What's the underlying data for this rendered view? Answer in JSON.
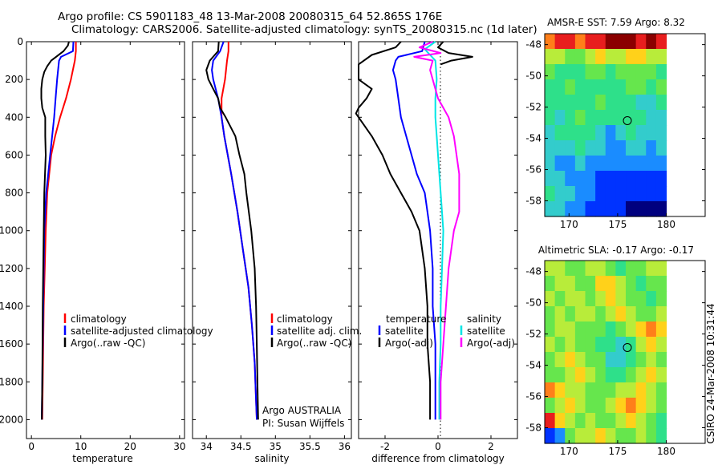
{
  "header": {
    "title_line1": "Argo profile: CS 5901183_48 13-Mar-2008 20080315_64 52.865S 176E",
    "title_line2": "Climatology: CARS2006. Satellite-adjusted climatology: synTS_20080315.nc (1d later)"
  },
  "side_stamp": "CSIRO 24-Mar-2008 10:31:44",
  "colors": {
    "climatology": "#ff0000",
    "satellite": "#0000ff",
    "argo": "#000000",
    "sal_diff": "#ff00ff",
    "sal_sat_diff": "#00e5e5"
  },
  "chart_data": [
    {
      "type": "line",
      "xlabel": "temperature",
      "ylabel": "",
      "xlim": [
        -1,
        31
      ],
      "ylim": [
        2100,
        0
      ],
      "x_ticks": [
        0,
        10,
        20,
        30
      ],
      "y_ticks": [
        0,
        200,
        400,
        600,
        800,
        1000,
        1200,
        1400,
        1600,
        1800,
        2000
      ],
      "grid": false,
      "legend": "bottom-right",
      "series": [
        {
          "name": "climatology",
          "color": "#ff0000",
          "depth": [
            0,
            50,
            100,
            200,
            300,
            400,
            500,
            600,
            800,
            1000,
            1200,
            1400,
            1600,
            1800,
            2000
          ],
          "values": [
            9.0,
            9.0,
            8.8,
            8.0,
            7.0,
            5.8,
            4.8,
            4.0,
            3.2,
            2.9,
            2.7,
            2.5,
            2.4,
            2.3,
            2.2
          ]
        },
        {
          "name": "satellite-adjusted climatology",
          "color": "#0000ff",
          "depth": [
            0,
            50,
            80,
            100,
            150,
            200,
            300,
            400,
            500,
            600,
            700,
            800,
            1000,
            1200,
            1400,
            1600,
            1800,
            2000
          ],
          "values": [
            8.5,
            8.4,
            6.0,
            5.6,
            5.4,
            5.2,
            4.9,
            4.6,
            4.2,
            3.8,
            3.4,
            3.0,
            2.6,
            2.5,
            2.4,
            2.3,
            2.2,
            2.1
          ]
        },
        {
          "name": "Argo(..raw -QC)",
          "color": "#000000",
          "depth": [
            0,
            20,
            50,
            80,
            100,
            130,
            160,
            200,
            250,
            300,
            350,
            400,
            500,
            600,
            800,
            1000,
            1400,
            1800,
            2000
          ],
          "values": [
            7.6,
            7.4,
            6.5,
            5.0,
            4.0,
            3.2,
            2.6,
            2.2,
            2.0,
            2.0,
            2.2,
            2.8,
            2.8,
            2.9,
            2.6,
            2.5,
            2.3,
            2.2,
            2.1
          ]
        }
      ]
    },
    {
      "type": "line",
      "xlabel": "salinity",
      "xlim": [
        33.8,
        36.1
      ],
      "ylim": [
        2100,
        0
      ],
      "x_ticks": [
        34,
        34.5,
        35,
        35.5,
        36
      ],
      "grid": false,
      "legend": "bottom-right",
      "legend_labels": [
        "climatology",
        "satellite adj. clim.",
        "Argo(..raw -QC)"
      ],
      "annotation": [
        "Argo AUSTRALIA",
        "PI: Susan Wijffels"
      ],
      "series": [
        {
          "name": "climatology",
          "color": "#ff0000",
          "depth": [
            0,
            50,
            100,
            200,
            300,
            400,
            500,
            700,
            900,
            1100,
            1300,
            1500,
            1700,
            1900,
            2000
          ],
          "values": [
            34.32,
            34.32,
            34.3,
            34.27,
            34.22,
            34.22,
            34.26,
            34.36,
            34.45,
            34.53,
            34.61,
            34.66,
            34.7,
            34.72,
            34.73
          ]
        },
        {
          "name": "satellite adj. clim.",
          "color": "#0000ff",
          "depth": [
            0,
            50,
            100,
            150,
            200,
            300,
            400,
            500,
            700,
            900,
            1100,
            1300,
            1500,
            1700,
            1900,
            2000
          ],
          "values": [
            34.25,
            34.2,
            34.1,
            34.08,
            34.1,
            34.17,
            34.22,
            34.26,
            34.36,
            34.45,
            34.53,
            34.61,
            34.66,
            34.7,
            34.72,
            34.73
          ]
        },
        {
          "name": "Argo(..raw -QC)",
          "color": "#000000",
          "depth": [
            0,
            50,
            100,
            150,
            200,
            250,
            300,
            350,
            400,
            500,
            600,
            700,
            800,
            1000,
            1200,
            1400,
            1600,
            1800,
            2000
          ],
          "values": [
            34.18,
            34.17,
            34.05,
            34.0,
            34.03,
            34.1,
            34.17,
            34.2,
            34.28,
            34.42,
            34.48,
            34.55,
            34.58,
            34.65,
            34.7,
            34.72,
            34.73,
            34.74,
            34.75
          ]
        }
      ]
    },
    {
      "type": "line",
      "xlabel": "difference from climatology",
      "xlim": [
        -3,
        3
      ],
      "ylim": [
        2100,
        0
      ],
      "x_ticks": [
        -2,
        0,
        2
      ],
      "zero_line": true,
      "grid": false,
      "legend": "bottom",
      "legend_temperature_title": "temperature",
      "legend_salinity_title": "salinity",
      "legend_labels": [
        "satellite",
        "Argo(-adj)",
        "satellite",
        "Argo(-adj)"
      ],
      "series": [
        {
          "name": "satellite",
          "group": "temperature",
          "color": "#0000ff",
          "depth": [
            0,
            50,
            80,
            100,
            150,
            200,
            300,
            400,
            500,
            600,
            700,
            800,
            900,
            1000,
            1200,
            1400,
            1600,
            1800,
            2000
          ],
          "values": [
            -0.5,
            -0.6,
            -1.5,
            -1.6,
            -1.7,
            -1.6,
            -1.5,
            -1.4,
            -1.2,
            -1.0,
            -0.8,
            -0.5,
            -0.4,
            -0.3,
            -0.2,
            -0.2,
            -0.1,
            -0.1,
            -0.1
          ]
        },
        {
          "name": "Argo(-adj)",
          "group": "temperature",
          "color": "#000000",
          "depth": [
            0,
            30,
            70,
            120,
            200,
            250,
            300,
            350,
            380,
            400,
            500,
            600,
            700,
            800,
            900,
            1000,
            1200,
            1400,
            1600,
            1800,
            2000
          ],
          "values": [
            -1.4,
            -1.6,
            -2.5,
            -3.0,
            -3.0,
            -2.5,
            -2.7,
            -3.0,
            -3.1,
            -3.0,
            -2.5,
            -2.1,
            -1.8,
            -1.4,
            -1.0,
            -0.7,
            -0.5,
            -0.4,
            -0.4,
            -0.3,
            -0.3
          ]
        },
        {
          "name": "satellite",
          "group": "salinity",
          "color": "#00e5e5",
          "depth": [
            0,
            40,
            70,
            100,
            200,
            300,
            400,
            500,
            600,
            800,
            1000,
            1200,
            1400,
            1600,
            1800,
            2000
          ],
          "values": [
            -0.1,
            -0.5,
            -0.3,
            -0.1,
            -0.05,
            -0.1,
            -0.1,
            -0.05,
            0.0,
            0.1,
            0.2,
            0.15,
            0.1,
            0.1,
            0.05,
            0.05
          ]
        },
        {
          "name": "Argo(-adj)",
          "group": "salinity",
          "color": "#ff00ff",
          "depth": [
            0,
            30,
            60,
            80,
            100,
            150,
            200,
            300,
            400,
            500,
            600,
            700,
            800,
            900,
            1000,
            1200,
            1400,
            1600,
            1800,
            2000
          ],
          "values": [
            -0.2,
            -0.7,
            0.1,
            -0.9,
            -0.2,
            -0.3,
            -0.2,
            0.0,
            0.4,
            0.6,
            0.7,
            0.8,
            0.8,
            0.8,
            0.6,
            0.4,
            0.3,
            0.2,
            0.1,
            0.1
          ]
        },
        {
          "name": "",
          "group": "spike",
          "color": "#000000",
          "depth": [
            0,
            30,
            60,
            80,
            100,
            120
          ],
          "values": [
            0.2,
            0.0,
            0.4,
            1.3,
            0.5,
            0.1
          ]
        }
      ]
    },
    {
      "type": "heatmap",
      "title": "AMSR-E SST: 7.59 Argo: 8.32",
      "xlim": [
        167.5,
        184
      ],
      "ylim": [
        -59,
        -47.3
      ],
      "x_ticks": [
        170,
        175,
        180
      ],
      "y_ticks": [
        -48,
        -50,
        -52,
        -54,
        -56,
        -58
      ],
      "data_extent": {
        "lon": [
          167.5,
          180
        ],
        "lat": [
          -59,
          -47.3
        ]
      },
      "argo_position": {
        "lon": 176,
        "lat": -52.865
      },
      "palette": [
        "#00007f",
        "#0033ff",
        "#1a8cff",
        "#33cccc",
        "#2ee08a",
        "#66e64d",
        "#b8ec3a",
        "#ffd11a",
        "#ff7f1a",
        "#e81e1e",
        "#8b0000"
      ],
      "grid": [
        [
          8,
          9,
          9,
          8,
          9,
          9,
          10,
          10,
          10,
          9,
          10,
          9
        ],
        [
          6,
          6,
          5,
          5,
          6,
          7,
          6,
          6,
          7,
          7,
          6,
          6
        ],
        [
          5,
          4,
          4,
          4,
          5,
          5,
          4,
          5,
          5,
          5,
          5,
          4
        ],
        [
          4,
          4,
          5,
          4,
          4,
          4,
          4,
          4,
          5,
          5,
          4,
          5
        ],
        [
          4,
          4,
          4,
          4,
          4,
          5,
          4,
          4,
          4,
          3,
          3,
          4
        ],
        [
          4,
          3,
          4,
          5,
          4,
          4,
          4,
          4,
          4,
          4,
          3,
          3
        ],
        [
          3,
          4,
          4,
          4,
          4,
          3,
          2,
          3,
          4,
          3,
          3,
          3
        ],
        [
          3,
          3,
          3,
          4,
          3,
          3,
          2,
          2,
          3,
          3,
          2,
          3
        ],
        [
          3,
          2,
          2,
          3,
          2,
          2,
          2,
          2,
          2,
          2,
          2,
          2
        ],
        [
          3,
          3,
          2,
          2,
          2,
          1,
          1,
          1,
          1,
          1,
          1,
          1
        ],
        [
          4,
          3,
          3,
          2,
          2,
          1,
          1,
          1,
          1,
          1,
          1,
          1
        ],
        [
          3,
          3,
          2,
          2,
          1,
          1,
          1,
          1,
          0,
          0,
          0,
          0
        ]
      ]
    },
    {
      "type": "heatmap",
      "title": "Altimetric SLA: -0.17 Argo: -0.17",
      "xlim": [
        167.5,
        184
      ],
      "ylim": [
        -59,
        -47.3
      ],
      "x_ticks": [
        170,
        175,
        180
      ],
      "y_ticks": [
        -48,
        -50,
        -52,
        -54,
        -56,
        -58
      ],
      "data_extent": {
        "lon": [
          167.5,
          180
        ],
        "lat": [
          -59,
          -47.3
        ]
      },
      "argo_position": {
        "lon": 176,
        "lat": -52.865
      },
      "palette": [
        "#00007f",
        "#0033ff",
        "#1a8cff",
        "#33cccc",
        "#2ee08a",
        "#66e64d",
        "#b8ec3a",
        "#ffd11a",
        "#ff7f1a",
        "#e81e1e",
        "#8b0000"
      ],
      "grid": [
        [
          6,
          6,
          5,
          5,
          6,
          6,
          5,
          4,
          5,
          5,
          6,
          6
        ],
        [
          5,
          6,
          6,
          5,
          5,
          7,
          7,
          6,
          5,
          4,
          5,
          5
        ],
        [
          6,
          5,
          6,
          6,
          5,
          6,
          7,
          6,
          5,
          5,
          4,
          5
        ],
        [
          5,
          6,
          5,
          6,
          6,
          5,
          6,
          7,
          6,
          5,
          5,
          6
        ],
        [
          5,
          6,
          6,
          5,
          5,
          5,
          4,
          5,
          6,
          7,
          8,
          7
        ],
        [
          6,
          5,
          6,
          5,
          5,
          4,
          4,
          3,
          4,
          6,
          7,
          6
        ],
        [
          5,
          6,
          7,
          6,
          5,
          5,
          3,
          3,
          4,
          5,
          6,
          5
        ],
        [
          5,
          5,
          6,
          7,
          6,
          5,
          4,
          4,
          5,
          6,
          7,
          6
        ],
        [
          8,
          7,
          6,
          6,
          5,
          5,
          5,
          6,
          6,
          7,
          6,
          5
        ],
        [
          5,
          6,
          7,
          6,
          5,
          5,
          6,
          7,
          8,
          7,
          6,
          5
        ],
        [
          9,
          7,
          6,
          5,
          6,
          5,
          5,
          6,
          7,
          6,
          5,
          4
        ],
        [
          1,
          2,
          5,
          6,
          6,
          7,
          6,
          5,
          5,
          6,
          5,
          4
        ]
      ]
    }
  ]
}
